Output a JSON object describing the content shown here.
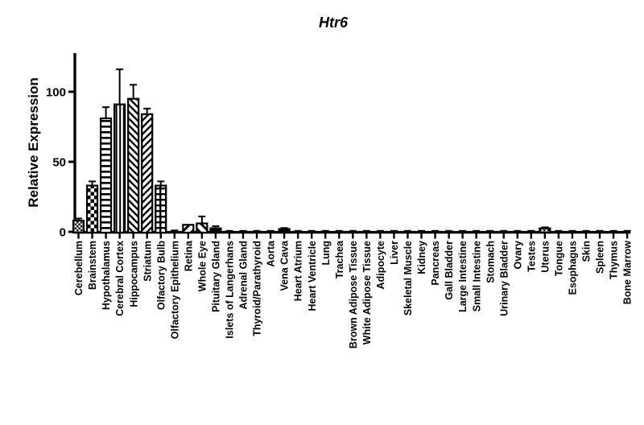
{
  "figure": {
    "background": "#ffffff",
    "ink": "#000000"
  },
  "chart_data": {
    "type": "bar",
    "title": "Htr6",
    "ylabel": "Relative Expression",
    "xlabel": "",
    "yticks": [
      0,
      50,
      100
    ],
    "ylim": [
      0,
      127
    ],
    "grid": false,
    "legend": null,
    "bar_fill_style": "black-and-white hatch patterns, GraphPad style",
    "error_bars": "upper whisker with cap, SEM",
    "categories": [
      "Cerebellum",
      "Brainstem",
      "Hypothalamus",
      "Cerebral Cortex",
      "Hippocampus",
      "Striatum",
      "Olfactory Bulb",
      "Olfactory Epithelium",
      "Retina",
      "Whole Eye",
      "Pituitary Gland",
      "Islets of Langerhans",
      "Adrenal Gland",
      "Thyroid/Parathyroid",
      "Aorta",
      "Vena Cava",
      "Heart Atrium",
      "Heart Ventricle",
      "Lung",
      "Trachea",
      "Brown Adipose Tissue",
      "White Adipose Tissue",
      "Adipocyte",
      "Liver",
      "Skeletal Muscle",
      "Kidney",
      "Pancreas",
      "Gall Bladder",
      "Large Intestine",
      "Small Intestine",
      "Stomach",
      "Urinary Bladder",
      "Ovary",
      "Testes",
      "Uterus",
      "Tongue",
      "Esophagus",
      "Skin",
      "Spleen",
      "Thymus",
      "Bone Marrow"
    ],
    "values": [
      8,
      33,
      81,
      91,
      95,
      84,
      33,
      0.7,
      5,
      6,
      2.5,
      0.4,
      0.4,
      0.4,
      0.4,
      2,
      0.4,
      0.4,
      0.4,
      0.4,
      0.4,
      0.4,
      0.4,
      0.4,
      0.4,
      0.4,
      0.4,
      0.4,
      0.4,
      0.4,
      0.4,
      0.4,
      0.4,
      0.4,
      2.5,
      0.4,
      0.4,
      0.4,
      0.4,
      0.4,
      0.4
    ],
    "errors": [
      1.5,
      3,
      8,
      25,
      10,
      4,
      3,
      0,
      0,
      5,
      1.5,
      0,
      0,
      0,
      0,
      0.7,
      0,
      0,
      0,
      0,
      0,
      0,
      0,
      0,
      0,
      0,
      0,
      0,
      0,
      0,
      0,
      0,
      0,
      0,
      0.7,
      0,
      0,
      0,
      0,
      0,
      0
    ],
    "patterns": [
      "checker-fine",
      "checker-coarse",
      "lines-horizontal",
      "lines-vertical",
      "diagonal-up",
      "diagonal-down",
      "grid",
      "solid",
      "diagonal-down-coarse",
      "diagonal-up-coarse",
      "solid",
      "solid",
      "solid",
      "solid",
      "solid",
      "solid",
      "solid",
      "solid",
      "solid",
      "solid",
      "solid",
      "solid",
      "solid",
      "solid",
      "solid",
      "solid",
      "solid",
      "solid",
      "solid",
      "solid",
      "solid",
      "solid",
      "solid",
      "solid",
      "checker-fine",
      "solid",
      "solid",
      "solid",
      "solid",
      "solid",
      "solid"
    ]
  }
}
